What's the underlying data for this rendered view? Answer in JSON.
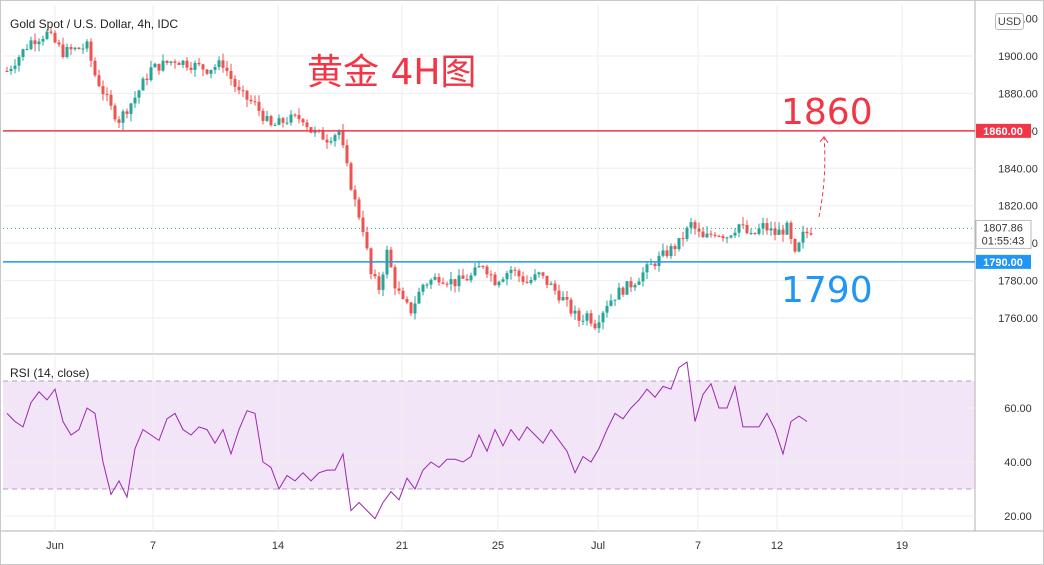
{
  "header": {
    "symbol_line": "Gold Spot / U.S. Dollar, 4h, IDC",
    "annotation": "黄金 4H图",
    "currency_badge": "USD"
  },
  "colors": {
    "up": "#26a69a",
    "down": "#ef5350",
    "resistance": "#f23645",
    "support": "#2196f3",
    "rsi_line": "#9c27b0",
    "rsi_band": "#f3e5f8"
  },
  "chart_data": [
    {
      "type": "candlestick",
      "title": "Gold Spot / U.S. Dollar, 4h, IDC",
      "ylim": [
        1745,
        1920
      ],
      "y_ticks": [
        1760,
        1780,
        1800,
        1820,
        1840,
        1860,
        1880,
        1900
      ],
      "y_tick_labels": [
        "1760.00",
        "1780.00",
        "1800.00",
        "1820.00",
        "1840.00",
        "1860.00",
        "1880.00",
        "1900.00"
      ],
      "x_ticks": [
        "Jun",
        "7",
        "14",
        "21",
        "25",
        "Jul",
        "7",
        "12",
        "19"
      ],
      "grid": true,
      "close_path": [
        [
          0,
          1892
        ],
        [
          6,
          1908
        ],
        [
          10,
          1912
        ],
        [
          14,
          1902
        ],
        [
          20,
          1905
        ],
        [
          22,
          1890
        ],
        [
          26,
          1872
        ],
        [
          28,
          1866
        ],
        [
          32,
          1878
        ],
        [
          36,
          1893
        ],
        [
          42,
          1898
        ],
        [
          50,
          1893
        ],
        [
          54,
          1896
        ],
        [
          58,
          1880
        ],
        [
          62,
          1874
        ],
        [
          66,
          1862
        ],
        [
          70,
          1866
        ],
        [
          74,
          1867
        ],
        [
          76,
          1860
        ],
        [
          80,
          1856
        ],
        [
          83,
          1860
        ],
        [
          85,
          1840
        ],
        [
          87,
          1822
        ],
        [
          89,
          1808
        ],
        [
          91,
          1783
        ],
        [
          93,
          1776
        ],
        [
          95,
          1795
        ],
        [
          97,
          1778
        ],
        [
          99,
          1768
        ],
        [
          101,
          1764
        ],
        [
          104,
          1778
        ],
        [
          108,
          1782
        ],
        [
          112,
          1779
        ],
        [
          116,
          1782
        ],
        [
          119,
          1789
        ],
        [
          122,
          1780
        ],
        [
          126,
          1786
        ],
        [
          130,
          1779
        ],
        [
          133,
          1783
        ],
        [
          136,
          1777
        ],
        [
          139,
          1770
        ],
        [
          141,
          1764
        ],
        [
          143,
          1759
        ],
        [
          145,
          1762
        ],
        [
          147,
          1757
        ],
        [
          150,
          1768
        ],
        [
          153,
          1774
        ],
        [
          156,
          1778
        ],
        [
          159,
          1784
        ],
        [
          162,
          1790
        ],
        [
          165,
          1795
        ],
        [
          168,
          1800
        ],
        [
          171,
          1810
        ],
        [
          174,
          1802
        ],
        [
          177,
          1806
        ],
        [
          180,
          1804
        ],
        [
          183,
          1810
        ],
        [
          186,
          1803
        ],
        [
          189,
          1809
        ],
        [
          192,
          1805
        ],
        [
          195,
          1808
        ],
        [
          197,
          1793
        ],
        [
          199,
          1804
        ],
        [
          201,
          1807
        ]
      ],
      "horizontal_levels": [
        {
          "value": 1860,
          "label": "1860.00",
          "annotation": "1860",
          "color": "#f23645"
        },
        {
          "value": 1790,
          "label": "1790.00",
          "annotation": "1790",
          "color": "#2196f3"
        }
      ],
      "last_price": {
        "value": 1807.86,
        "label": "1807.86",
        "countdown": "01:55:43"
      },
      "projection_target": 1860,
      "partial_top_tick": "1920.00"
    },
    {
      "type": "line",
      "title": "RSI (14, close)",
      "ylim": [
        15,
        77
      ],
      "y_ticks": [
        20,
        40,
        60
      ],
      "y_tick_labels": [
        "20.00",
        "40.00",
        "60.00"
      ],
      "band": [
        30,
        70
      ],
      "series": [
        {
          "name": "RSI",
          "values": [
            [
              0,
              58
            ],
            [
              2,
              55
            ],
            [
              4,
              53
            ],
            [
              6,
              62
            ],
            [
              8,
              66
            ],
            [
              10,
              63
            ],
            [
              12,
              67
            ],
            [
              14,
              55
            ],
            [
              16,
              50
            ],
            [
              18,
              52
            ],
            [
              20,
              60
            ],
            [
              22,
              58
            ],
            [
              24,
              40
            ],
            [
              26,
              28
            ],
            [
              28,
              33
            ],
            [
              30,
              27
            ],
            [
              32,
              45
            ],
            [
              34,
              52
            ],
            [
              36,
              50
            ],
            [
              38,
              48
            ],
            [
              40,
              56
            ],
            [
              42,
              58
            ],
            [
              44,
              52
            ],
            [
              46,
              50
            ],
            [
              48,
              53
            ],
            [
              50,
              52
            ],
            [
              52,
              47
            ],
            [
              54,
              52
            ],
            [
              56,
              43
            ],
            [
              58,
              52
            ],
            [
              60,
              59
            ],
            [
              62,
              58
            ],
            [
              64,
              40
            ],
            [
              66,
              38
            ],
            [
              68,
              30
            ],
            [
              70,
              35
            ],
            [
              72,
              33
            ],
            [
              74,
              36
            ],
            [
              76,
              33
            ],
            [
              78,
              36
            ],
            [
              80,
              37
            ],
            [
              82,
              37
            ],
            [
              84,
              43
            ],
            [
              86,
              22
            ],
            [
              88,
              25
            ],
            [
              90,
              22
            ],
            [
              92,
              19
            ],
            [
              94,
              25
            ],
            [
              96,
              29
            ],
            [
              98,
              26
            ],
            [
              100,
              34
            ],
            [
              102,
              30
            ],
            [
              104,
              37
            ],
            [
              106,
              40
            ],
            [
              108,
              38
            ],
            [
              110,
              41
            ],
            [
              112,
              41
            ],
            [
              114,
              40
            ],
            [
              116,
              42
            ],
            [
              118,
              50
            ],
            [
              120,
              44
            ],
            [
              122,
              52
            ],
            [
              124,
              46
            ],
            [
              126,
              52
            ],
            [
              128,
              48
            ],
            [
              130,
              53
            ],
            [
              132,
              50
            ],
            [
              134,
              47
            ],
            [
              136,
              52
            ],
            [
              138,
              48
            ],
            [
              140,
              44
            ],
            [
              142,
              36
            ],
            [
              144,
              42
            ],
            [
              146,
              40
            ],
            [
              148,
              45
            ],
            [
              150,
              52
            ],
            [
              152,
              58
            ],
            [
              154,
              56
            ],
            [
              156,
              60
            ],
            [
              158,
              63
            ],
            [
              160,
              67
            ],
            [
              162,
              64
            ],
            [
              164,
              68
            ],
            [
              166,
              67
            ],
            [
              168,
              75
            ],
            [
              170,
              77
            ],
            [
              172,
              55
            ],
            [
              174,
              65
            ],
            [
              176,
              69
            ],
            [
              178,
              60
            ],
            [
              180,
              60
            ],
            [
              182,
              68
            ],
            [
              184,
              53
            ],
            [
              186,
              53
            ],
            [
              188,
              53
            ],
            [
              190,
              58
            ],
            [
              192,
              52
            ],
            [
              194,
              43
            ],
            [
              196,
              55
            ],
            [
              198,
              57
            ],
            [
              200,
              55
            ]
          ]
        }
      ]
    }
  ]
}
